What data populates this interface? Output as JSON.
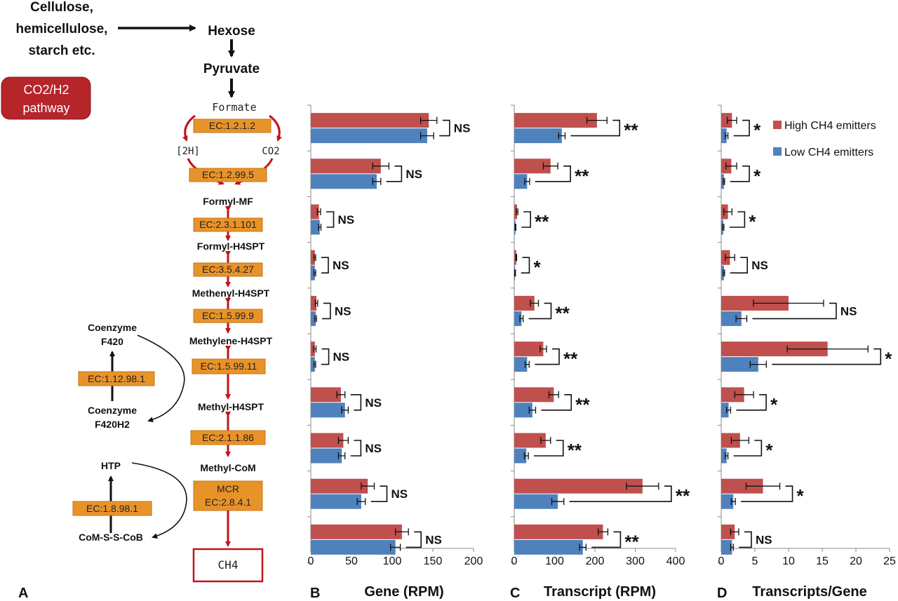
{
  "colors": {
    "high": "#c0504d",
    "low": "#4f81bd",
    "pathway_arrow": "#c0141a",
    "ec_box": "#e8932a",
    "badge": "#b5252a"
  },
  "pathway": {
    "substrate": [
      "Cellulose,",
      "hemicellulose,",
      "starch etc."
    ],
    "hexose": "Hexose",
    "pyruvate": "Pyruvate",
    "badge": [
      "CO2/H2",
      "pathway"
    ],
    "formate": "Formate",
    "h2": "[2H]",
    "co2": "CO2",
    "formyl_mf": "Formyl-MF",
    "formyl_h4spt": "Formyl-H4SPT",
    "methenyl_h4spt": "Methenyl-H4SPT",
    "methylene_h4spt": "Methylene-H4SPT",
    "methyl_h4spt": "Methyl-H4SPT",
    "methyl_com": "Methyl-CoM",
    "ch4": "CH4",
    "coenzyme_f420": [
      "Coenzyme",
      "F420"
    ],
    "coenzyme_f420h2": [
      "Coenzyme",
      "F420H2"
    ],
    "htp": "HTP",
    "com_s_s_cob": "CoM-S-S-CoB",
    "ec_1_12_98_1": "EC:1.12.98.1",
    "ec_1_8_98_1": "EC:1.8.98.1",
    "enzymes": [
      "EC:1.2.1.2",
      "EC:1.2.99.5",
      "EC:2.3.1.101",
      "EC:3.5.4.27",
      "EC:1.5.99.9",
      "EC:1.5.99.11",
      "EC:2.1.1.86",
      "MCR",
      "EC:2.8.4.1"
    ]
  },
  "panel_labels": [
    "A",
    "B",
    "C",
    "D"
  ],
  "chart_data": [
    {
      "type": "bar",
      "orientation": "horizontal",
      "panel": "B",
      "xlabel": "Gene (RPM)",
      "xlim": [
        0,
        200
      ],
      "xticks": [
        0,
        50,
        100,
        150,
        200
      ],
      "series": [
        {
          "name": "High CH4 emitters",
          "values": [
            145,
            86,
            10,
            5,
            7,
            5,
            37,
            40,
            70,
            112
          ],
          "errors": [
            10,
            10,
            2,
            1,
            1.5,
            1.5,
            5,
            6,
            8,
            8
          ]
        },
        {
          "name": "Low CH4 emitters",
          "values": [
            143,
            81,
            11,
            5,
            6,
            5,
            42,
            38,
            62,
            104
          ],
          "errors": [
            8,
            5,
            1.5,
            1,
            1,
            1,
            4,
            4,
            5,
            6
          ]
        }
      ],
      "significance": [
        "NS",
        "NS",
        "NS",
        "NS",
        "NS",
        "NS",
        "NS",
        "NS",
        "NS",
        "NS"
      ]
    },
    {
      "type": "bar",
      "orientation": "horizontal",
      "panel": "C",
      "xlabel": "Transcript (RPM)",
      "xlim": [
        0,
        400
      ],
      "xticks": [
        0,
        100,
        200,
        300,
        400
      ],
      "series": [
        {
          "name": "High CH4 emitters",
          "values": [
            205,
            90,
            7,
            5,
            50,
            72,
            98,
            78,
            318,
            220
          ],
          "errors": [
            25,
            18,
            2,
            1,
            10,
            8,
            12,
            12,
            40,
            12
          ]
        },
        {
          "name": "Low CH4 emitters",
          "values": [
            118,
            32,
            3,
            2,
            18,
            32,
            45,
            30,
            108,
            170
          ],
          "errors": [
            8,
            6,
            1,
            1,
            4,
            5,
            8,
            5,
            15,
            8
          ]
        }
      ],
      "significance": [
        "**",
        "**",
        "**",
        "*",
        "**",
        "**",
        "**",
        "**",
        "**",
        "**"
      ]
    },
    {
      "type": "bar",
      "orientation": "horizontal",
      "panel": "D",
      "xlabel": "Transcripts/Gene",
      "xlim": [
        0,
        25
      ],
      "xticks": [
        0,
        5,
        10,
        15,
        20,
        25
      ],
      "legend": {
        "position": "top-right",
        "entries": [
          "High CH4 emitters",
          "Low CH4 emitters"
        ]
      },
      "series": [
        {
          "name": "High CH4 emitters",
          "values": [
            1.6,
            1.5,
            1.0,
            1.3,
            10.0,
            15.8,
            3.4,
            2.8,
            6.2,
            2.0
          ],
          "errors": [
            0.7,
            0.8,
            0.6,
            0.7,
            5.2,
            6.0,
            1.4,
            1.3,
            2.5,
            0.6
          ]
        },
        {
          "name": "Low CH4 emitters",
          "values": [
            0.8,
            0.4,
            0.3,
            0.4,
            3.0,
            5.5,
            1.1,
            0.8,
            1.8,
            1.6
          ],
          "errors": [
            0.2,
            0.1,
            0.1,
            0.1,
            0.8,
            1.2,
            0.3,
            0.2,
            0.3,
            0.2
          ]
        }
      ],
      "significance": [
        "*",
        "*",
        "*",
        "NS",
        "NS",
        "*",
        "*",
        "*",
        "*",
        "NS"
      ]
    }
  ]
}
